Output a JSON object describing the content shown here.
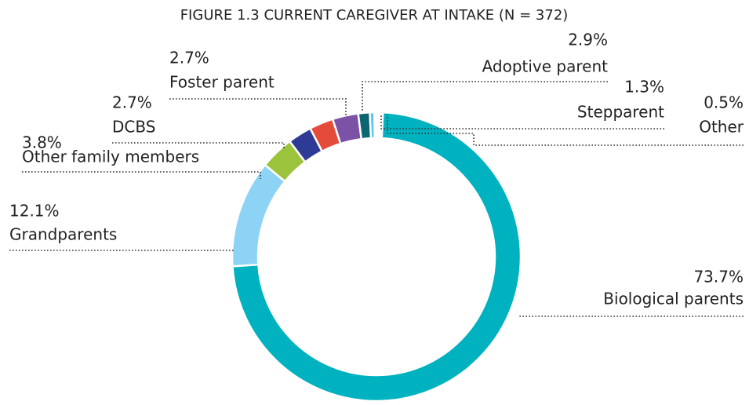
{
  "chart_data": {
    "type": "pie",
    "title": "FIGURE 1.3 CURRENT CAREGIVER AT INTAKE (N = 372)",
    "categories": [
      "Biological parents",
      "Grandparents",
      "Other family members",
      "DCBS",
      "Foster parent",
      "Adoptive parent",
      "Stepparent",
      "Other"
    ],
    "values": [
      73.7,
      12.1,
      3.8,
      2.7,
      2.7,
      2.9,
      1.3,
      0.5
    ],
    "value_labels": [
      "73.7%",
      "12.1%",
      "3.8%",
      "2.7%",
      "2.7%",
      "2.9%",
      "1.3%",
      "0.5%"
    ],
    "colors": [
      "#00b2c0",
      "#8dd3f6",
      "#9cc33c",
      "#2e3b95",
      "#e44b3b",
      "#7c52a7",
      "#0b6671",
      "#5fc3ee"
    ]
  }
}
